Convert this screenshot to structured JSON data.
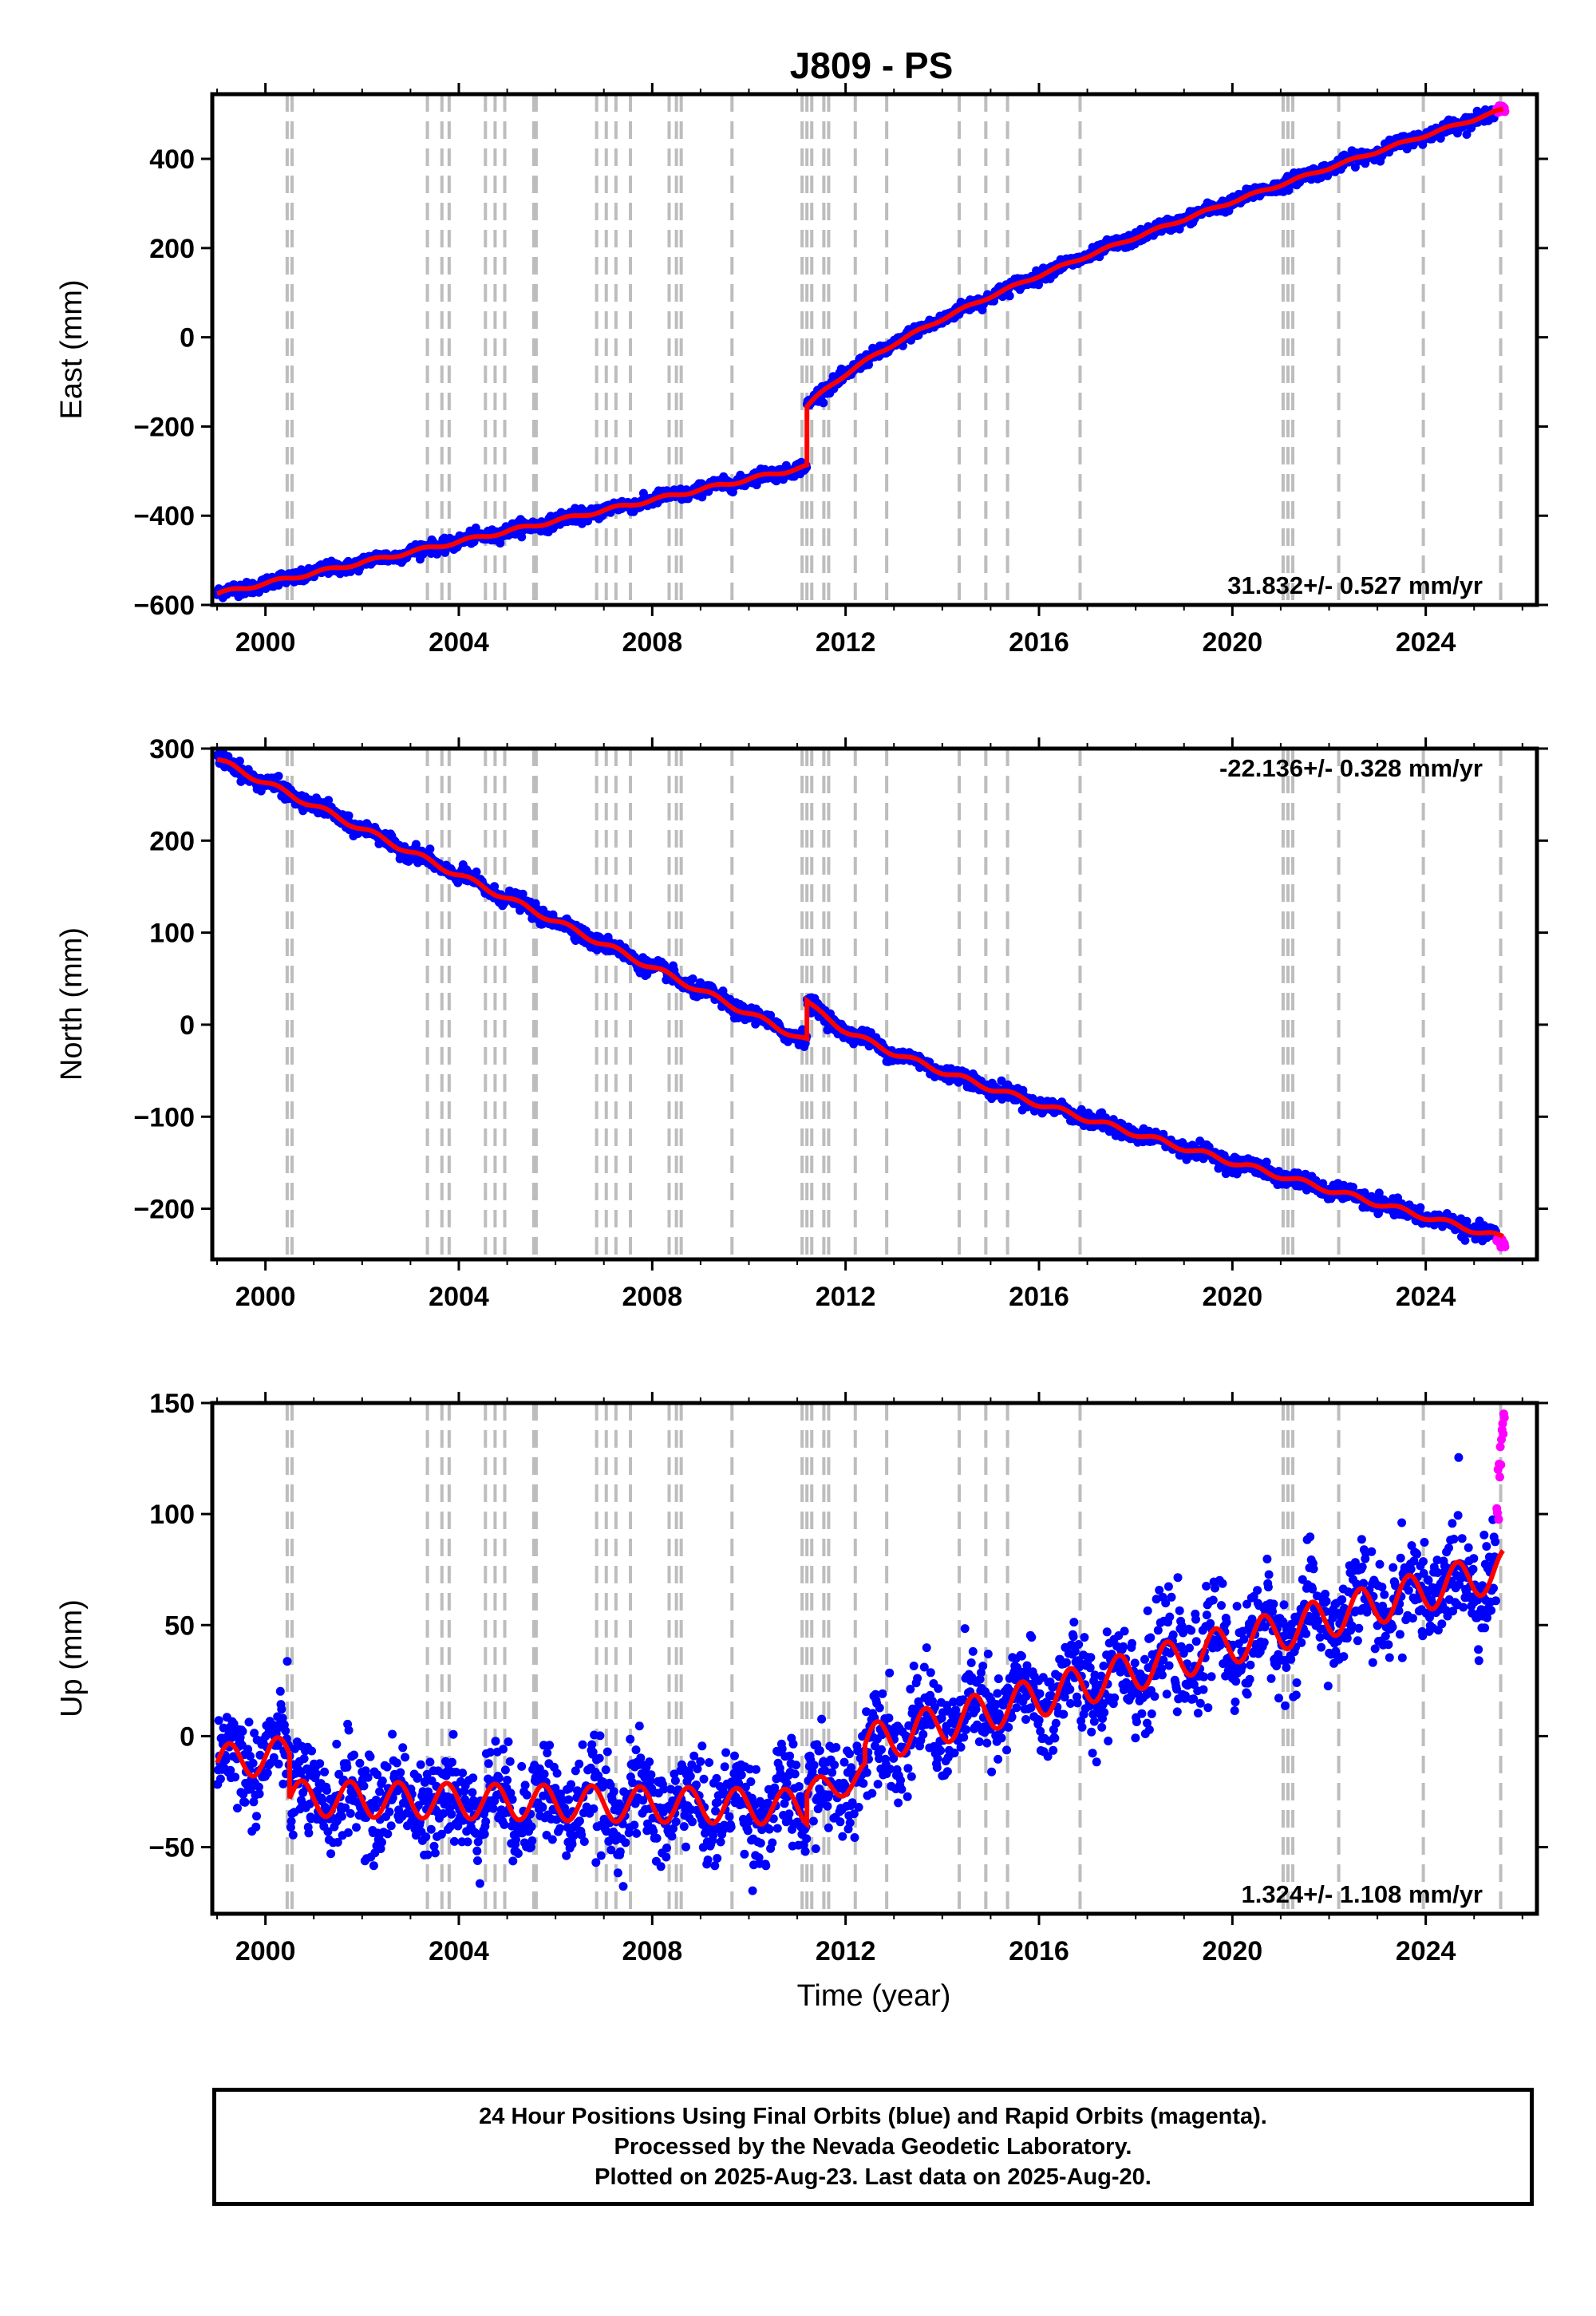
{
  "title": "J809 - PS",
  "x_axis": {
    "label": "Time (year)",
    "range": [
      1998.9,
      2026.3
    ],
    "ticks": [
      2000,
      2004,
      2008,
      2012,
      2016,
      2020,
      2024
    ],
    "tick_labels": [
      "2000",
      "2004",
      "2008",
      "2012",
      "2016",
      "2020",
      "2024"
    ]
  },
  "colors": {
    "final_orbits": "#0000ff",
    "rapid_orbits": "#ff00ff",
    "model": "#ff0000",
    "event_lines": "#bdbdbd"
  },
  "event_epochs": [
    2000.45,
    2000.55,
    2003.35,
    2003.65,
    2003.8,
    2004.55,
    2004.75,
    2004.95,
    2005.55,
    2005.6,
    2006.85,
    2007.05,
    2007.25,
    2007.55,
    2008.35,
    2008.5,
    2008.6,
    2009.65,
    2011.1,
    2011.2,
    2011.3,
    2011.55,
    2011.65,
    2012.2,
    2012.85,
    2014.35,
    2014.9,
    2015.35,
    2016.85,
    2021.05,
    2021.15,
    2021.25,
    2022.2,
    2023.95,
    2025.55
  ],
  "chart_data": [
    {
      "type": "scatter",
      "component": "east",
      "ylabel": "East (mm)",
      "ylim": [
        -600,
        545
      ],
      "yticks": [
        -600,
        -400,
        -200,
        0,
        200,
        400
      ],
      "ytick_labels": [
        "−600",
        "−400",
        "−200",
        "0",
        "200",
        "400"
      ],
      "velocity_label": "31.832+/- 0.527 mm/yr",
      "segments": [
        {
          "t0": 1999.0,
          "t1": 2011.2,
          "v0": -575,
          "v1": -290,
          "seasonal": 4
        },
        {
          "t0": 2011.2,
          "t1": 2025.6,
          "v0": -155,
          "v1": 510,
          "seasonal": 3,
          "postseismic_amp": 95,
          "postseismic_tau": 1.2
        }
      ],
      "noise": 7,
      "series": [
        {
          "name": "Final Orbits",
          "color": "#0000ff"
        },
        {
          "name": "Rapid Orbits",
          "color": "#ff00ff"
        },
        {
          "name": "Model",
          "color": "#ff0000"
        }
      ]
    },
    {
      "type": "scatter",
      "component": "north",
      "ylabel": "North (mm)",
      "ylim": [
        -255,
        300
      ],
      "yticks": [
        -200,
        -100,
        0,
        100,
        200,
        300
      ],
      "ytick_labels": [
        "−200",
        "−100",
        "0",
        "100",
        "200",
        "300"
      ],
      "velocity_label": "-22.136+/- 0.328 mm/yr",
      "segments": [
        {
          "t0": 1999.0,
          "t1": 2011.2,
          "v0": 288,
          "v1": -18,
          "seasonal": 3
        },
        {
          "t0": 2011.2,
          "t1": 2025.6,
          "v0": 26,
          "v1": -232,
          "seasonal": 3,
          "postseismic_amp": -18,
          "postseismic_tau": 0.35
        }
      ],
      "noise": 4,
      "series": [
        {
          "name": "Final Orbits",
          "color": "#0000ff"
        },
        {
          "name": "Rapid Orbits",
          "color": "#ff00ff"
        },
        {
          "name": "Model",
          "color": "#ff0000"
        }
      ]
    },
    {
      "type": "scatter",
      "component": "up",
      "ylabel": "Up (mm)",
      "ylim": [
        -80,
        150
      ],
      "yticks": [
        -50,
        0,
        50,
        100,
        150
      ],
      "ytick_labels": [
        "−50",
        "0",
        "50",
        "100",
        "150"
      ],
      "velocity_label": "1.324+/- 1.108 mm/yr",
      "segments": [
        {
          "t0": 1999.0,
          "t1": 2000.5,
          "v0": -12,
          "v1": -8,
          "seasonal": 8
        },
        {
          "t0": 2000.5,
          "t1": 2011.2,
          "v0": -28,
          "v1": -32,
          "seasonal": 8
        },
        {
          "t0": 2011.2,
          "t1": 2012.4,
          "v0": -26,
          "v1": -18,
          "seasonal": 6
        },
        {
          "t0": 2012.4,
          "t1": 2025.6,
          "v0": -4,
          "v1": 75,
          "seasonal": 9
        }
      ],
      "noise": 11,
      "series": [
        {
          "name": "Final Orbits",
          "color": "#0000ff"
        },
        {
          "name": "Rapid Orbits",
          "color": "#ff00ff"
        },
        {
          "name": "Model",
          "color": "#ff0000"
        }
      ]
    }
  ],
  "footer": {
    "line1": "24 Hour Positions Using Final Orbits (blue) and Rapid Orbits (magenta).",
    "line2": "Processed by the Nevada Geodetic Laboratory.",
    "line3": "Plotted on 2025-Aug-23. Last data on 2025-Aug-20."
  }
}
